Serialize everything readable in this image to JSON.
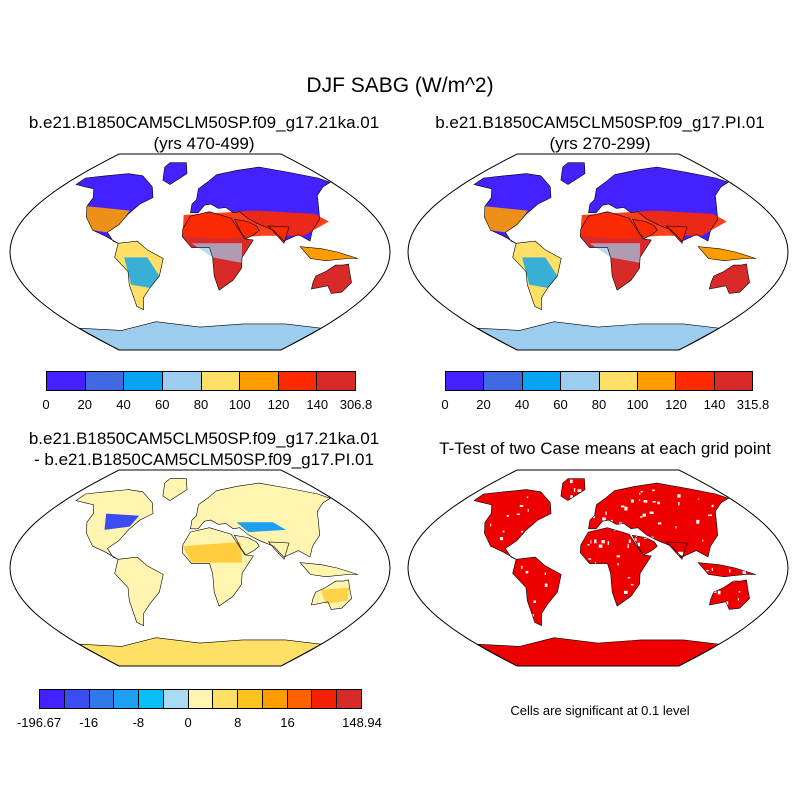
{
  "title": "DJF SABG (W/m^2)",
  "panels": {
    "top_left": {
      "case": "b.e21.B1850CAM5CLM50SP.f09_g17.21ka.01",
      "years": "(yrs 470-499)"
    },
    "top_right": {
      "case": "b.e21.B1850CAM5CLM50SP.f09_g17.PI.01",
      "years": "(yrs 270-299)"
    },
    "bottom_left": {
      "line1": "b.e21.B1850CAM5CLM50SP.f09_g17.21ka.01",
      "line2": "- b.e21.B1850CAM5CLM50SP.f09_g17.PI.01"
    },
    "bottom_right": {
      "title": "T-Test of two Case means at each grid point",
      "note": "Cells are significant at 0.1 level"
    }
  },
  "colorbars": {
    "top_left": {
      "colors": [
        "#4421ff",
        "#4169e1",
        "#08a3f3",
        "#9ccdee",
        "#ffe066",
        "#ff9c00",
        "#ff2a00",
        "#d92a2a"
      ],
      "labels": [
        "0",
        "20",
        "40",
        "60",
        "80",
        "100",
        "120",
        "140",
        "306.8"
      ]
    },
    "top_right": {
      "colors": [
        "#4421ff",
        "#4169e1",
        "#08a3f3",
        "#9ccdee",
        "#ffe066",
        "#ff9c00",
        "#ff2a00",
        "#d92a2a"
      ],
      "labels": [
        "0",
        "20",
        "40",
        "60",
        "80",
        "100",
        "120",
        "140",
        "315.8"
      ]
    },
    "bottom_left": {
      "colors": [
        "#4421ff",
        "#3b4df0",
        "#2f79e8",
        "#1e9ff2",
        "#08c0f8",
        "#a9dcf2",
        "#fff5b0",
        "#ffe066",
        "#ffc320",
        "#ff9c00",
        "#ff6000",
        "#f52000",
        "#d92a2a"
      ],
      "labels": [
        "-196.67",
        "-16",
        "-8",
        "0",
        "8",
        "16",
        "148.94"
      ]
    }
  },
  "map_colors": {
    "ocean": "#ffffff",
    "antarctica_abs": "#9ccdee",
    "ttest_sig": "#ee0000"
  }
}
